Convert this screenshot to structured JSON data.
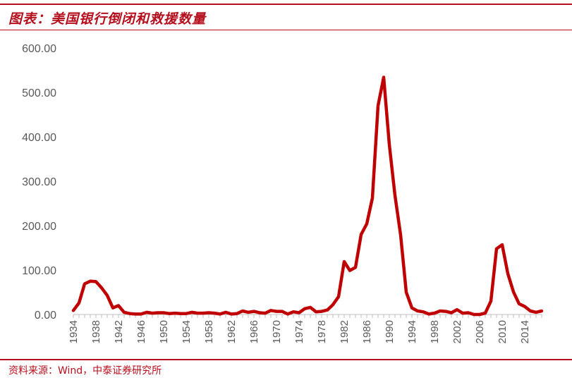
{
  "header": {
    "title": "图表：美国银行倒闭和救援数量"
  },
  "footer": {
    "source": "资料来源：Wind，中泰证券研究所"
  },
  "colors": {
    "accent": "#b50e1c",
    "line": "#c00000",
    "axis_text": "#595959"
  },
  "chart_data": {
    "type": "line",
    "title": "",
    "xlabel": "",
    "ylabel": "",
    "ylim": [
      0,
      600
    ],
    "xlim": [
      1934,
      2017
    ],
    "grid": false,
    "y_tick_labels": [
      "0.00",
      "100.00",
      "200.00",
      "300.00",
      "400.00",
      "500.00",
      "600.00"
    ],
    "x_tick_labels": [
      "1934",
      "1938",
      "1942",
      "1946",
      "1950",
      "1954",
      "1958",
      "1962",
      "1966",
      "1970",
      "1974",
      "1978",
      "1982",
      "1986",
      "1990",
      "1994",
      "1998",
      "2002",
      "2006",
      "2010",
      "2014"
    ],
    "series": [
      {
        "name": "",
        "x": [
          1934,
          1935,
          1936,
          1937,
          1938,
          1939,
          1940,
          1941,
          1942,
          1943,
          1944,
          1945,
          1946,
          1947,
          1948,
          1949,
          1950,
          1951,
          1952,
          1953,
          1954,
          1955,
          1956,
          1957,
          1958,
          1959,
          1960,
          1961,
          1962,
          1963,
          1964,
          1965,
          1966,
          1967,
          1968,
          1969,
          1970,
          1971,
          1972,
          1973,
          1974,
          1975,
          1976,
          1977,
          1978,
          1979,
          1980,
          1981,
          1982,
          1983,
          1984,
          1985,
          1986,
          1987,
          1988,
          1989,
          1990,
          1991,
          1992,
          1993,
          1994,
          1995,
          1996,
          1997,
          1998,
          1999,
          2000,
          2001,
          2002,
          2003,
          2004,
          2005,
          2006,
          2007,
          2008,
          2009,
          2010,
          2011,
          2012,
          2013,
          2014,
          2015,
          2016,
          2017
        ],
        "values": [
          9,
          26,
          69,
          75,
          74,
          60,
          43,
          15,
          20,
          5,
          2,
          1,
          1,
          5,
          3,
          4,
          4,
          2,
          3,
          2,
          2,
          5,
          3,
          3,
          4,
          3,
          1,
          5,
          1,
          2,
          8,
          5,
          7,
          4,
          3,
          9,
          7,
          7,
          1,
          6,
          4,
          13,
          16,
          6,
          7,
          10,
          22,
          40,
          119,
          99,
          106,
          180,
          204,
          262,
          470,
          534,
          382,
          268,
          179,
          50,
          15,
          8,
          6,
          1,
          3,
          8,
          7,
          4,
          11,
          3,
          4,
          0,
          0,
          3,
          30,
          148,
          157,
          92,
          51,
          24,
          18,
          8,
          5,
          8
        ]
      }
    ]
  }
}
